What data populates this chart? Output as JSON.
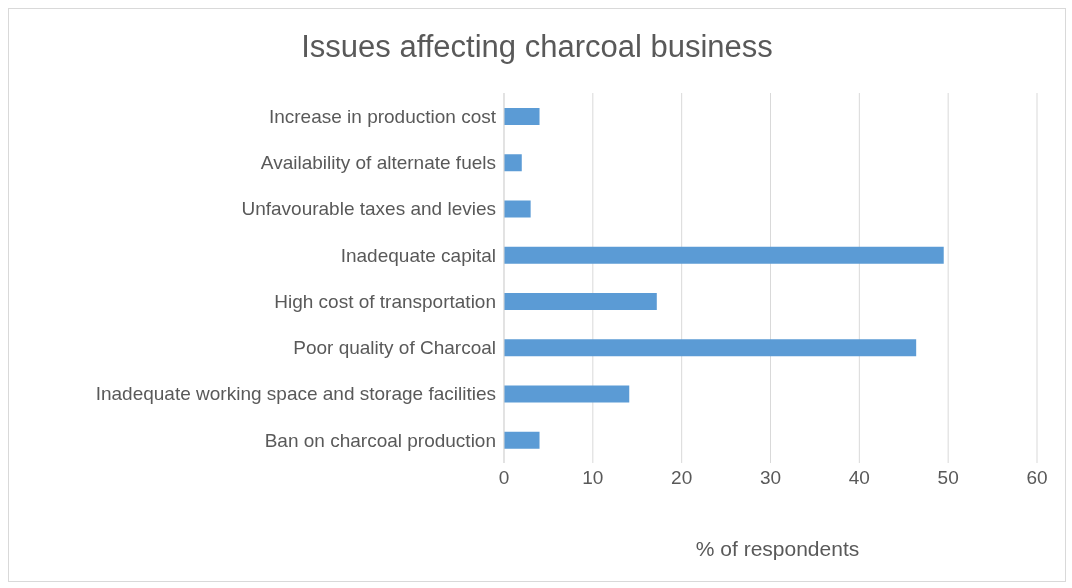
{
  "chart_data": {
    "type": "bar",
    "orientation": "horizontal",
    "title": "Issues affecting charcoal business",
    "xlabel": "% of respondents",
    "categories": [
      "Increase in production cost",
      "Availability of alternate fuels",
      "Unfavourable taxes and levies",
      "Inadequate capital",
      "High cost of transportation",
      "Poor quality of Charcoal",
      "Inadequate working space and storage facilities",
      "Ban on charcoal production"
    ],
    "values": [
      4,
      2,
      3,
      49.5,
      17.2,
      46.4,
      14.1,
      4
    ],
    "color": "#5b9bd5",
    "xlim": [
      0,
      60
    ],
    "xticks": [
      0,
      10,
      20,
      30,
      40,
      50,
      60
    ],
    "grid": "x",
    "legend": false
  }
}
